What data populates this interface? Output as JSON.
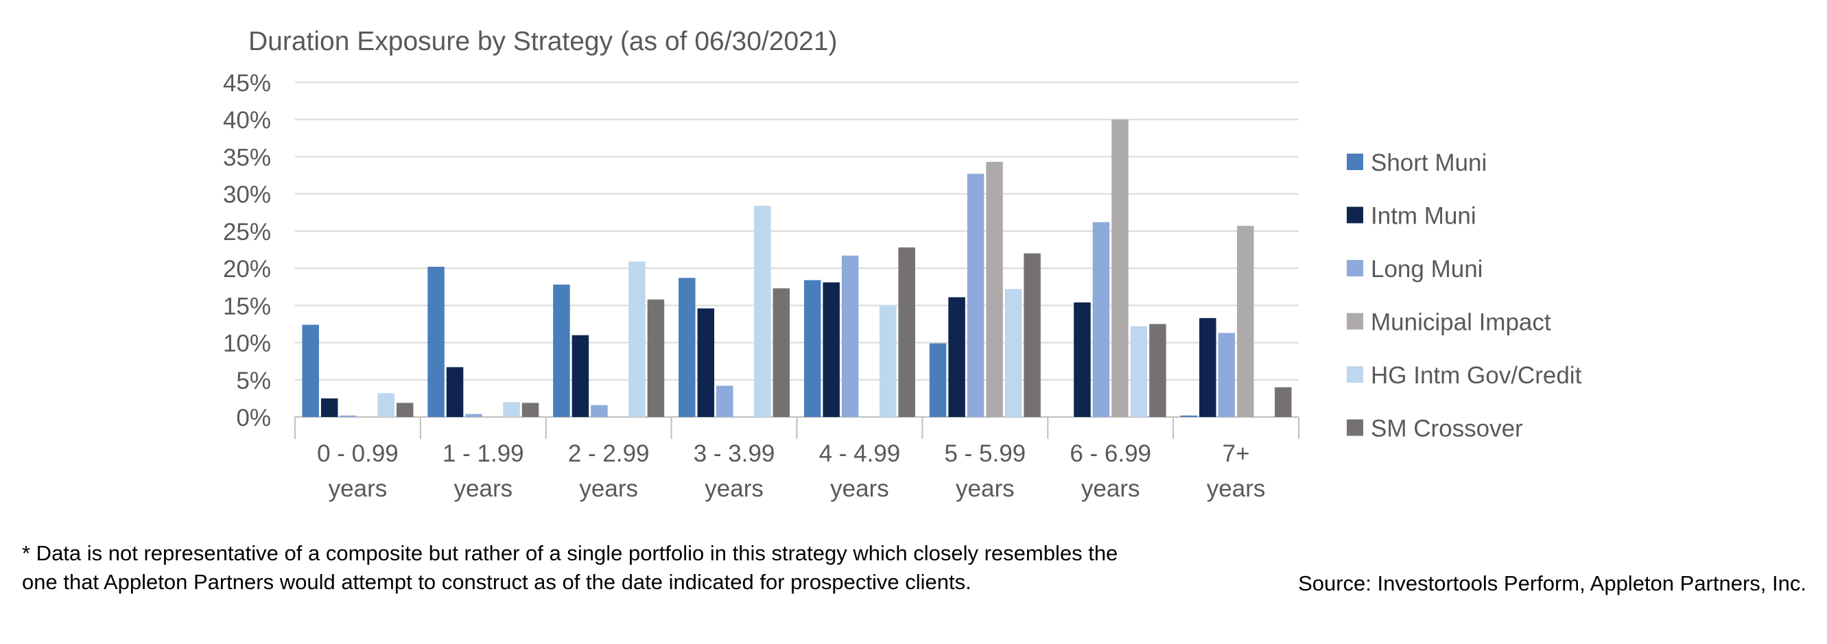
{
  "chart_data": {
    "type": "bar",
    "title": "Duration Exposure by Strategy (as of 06/30/2021)",
    "xlabel": "",
    "ylabel": "",
    "ylim": [
      0,
      45
    ],
    "yticks": [
      0,
      5,
      10,
      15,
      20,
      25,
      30,
      35,
      40,
      45
    ],
    "ytick_labels": [
      "0%",
      "5%",
      "10%",
      "15%",
      "20%",
      "25%",
      "30%",
      "35%",
      "40%",
      "45%"
    ],
    "categories": [
      [
        "0 - 0.99",
        "years"
      ],
      [
        "1 - 1.99",
        "years"
      ],
      [
        "2 - 2.99",
        "years"
      ],
      [
        "3 - 3.99",
        "years"
      ],
      [
        "4 - 4.99",
        "years"
      ],
      [
        "5 - 5.99",
        "years"
      ],
      [
        "6 - 6.99",
        "years"
      ],
      [
        "7+",
        "years"
      ]
    ],
    "grid": true,
    "legend_position": "right",
    "series": [
      {
        "name": "Short Muni",
        "color": "#4a7ebb",
        "values": [
          12.4,
          20.2,
          17.8,
          18.7,
          18.4,
          9.9,
          0,
          0.2
        ]
      },
      {
        "name": "Intm Muni",
        "color": "#0f2550",
        "values": [
          2.5,
          6.7,
          11.0,
          14.6,
          18.1,
          16.1,
          15.4,
          13.3
        ]
      },
      {
        "name": "Long Muni",
        "color": "#8eaadb",
        "values": [
          0.2,
          0.4,
          1.6,
          4.2,
          21.7,
          32.7,
          26.2,
          11.3
        ]
      },
      {
        "name": "Municipal Impact",
        "color": "#aeaaaa",
        "values": [
          0,
          0,
          0,
          0,
          0,
          34.3,
          40.0,
          25.7
        ]
      },
      {
        "name": "HG Intm Gov/Credit",
        "color": "#bdd7ee",
        "values": [
          3.2,
          2.0,
          20.9,
          28.4,
          15.0,
          17.2,
          12.2,
          0
        ]
      },
      {
        "name": "SM Crossover",
        "color": "#767171",
        "values": [
          1.9,
          1.9,
          15.8,
          17.3,
          22.8,
          22.0,
          12.5,
          4.0
        ]
      }
    ]
  },
  "footnote": "* Data is not representative of a composite but rather of a single portfolio in this strategy which closely resembles the one that Appleton Partners would attempt to construct as of the date indicated for prospective clients.",
  "source": "Source: Investortools Perform, Appleton Partners, Inc."
}
